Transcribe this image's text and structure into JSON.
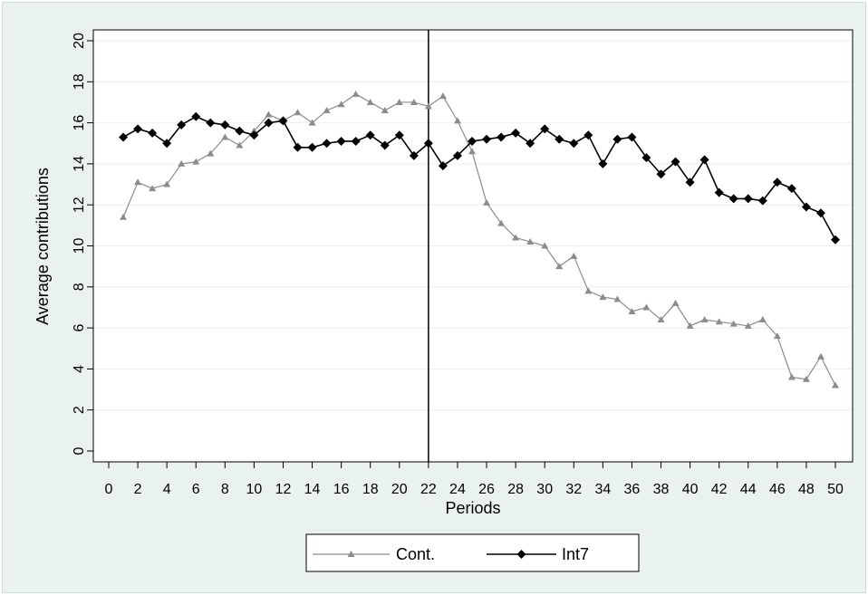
{
  "chart_data": {
    "type": "line",
    "title": "",
    "xlabel": "Periods",
    "ylabel": "Average contributions",
    "xlim": [
      0,
      50
    ],
    "ylim": [
      0,
      20
    ],
    "x_ticks": [
      0,
      2,
      4,
      6,
      8,
      10,
      12,
      14,
      16,
      18,
      20,
      22,
      24,
      26,
      28,
      30,
      32,
      34,
      36,
      38,
      40,
      42,
      44,
      46,
      48,
      50
    ],
    "y_ticks": [
      0,
      2,
      4,
      6,
      8,
      10,
      12,
      14,
      16,
      18,
      20
    ],
    "grid": "horizontal",
    "legend_position": "bottom",
    "vertical_reference_line_x": 22,
    "x": [
      1,
      2,
      3,
      4,
      5,
      6,
      7,
      8,
      9,
      10,
      11,
      12,
      13,
      14,
      15,
      16,
      17,
      18,
      19,
      20,
      21,
      22,
      23,
      24,
      25,
      26,
      27,
      28,
      29,
      30,
      31,
      32,
      33,
      34,
      35,
      36,
      37,
      38,
      39,
      40,
      41,
      42,
      43,
      44,
      45,
      46,
      47,
      48,
      49,
      50
    ],
    "series": [
      {
        "name": "Cont.",
        "marker": "triangle",
        "color": "#8c8c8c",
        "values": [
          11.4,
          13.1,
          12.8,
          13.0,
          14.0,
          14.1,
          14.5,
          15.3,
          14.9,
          15.6,
          16.4,
          16.1,
          16.5,
          16.0,
          16.6,
          16.9,
          17.4,
          17.0,
          16.6,
          17.0,
          17.0,
          16.8,
          17.3,
          16.1,
          14.6,
          12.1,
          11.1,
          10.4,
          10.2,
          10.0,
          9.0,
          9.5,
          7.8,
          7.5,
          7.4,
          6.8,
          7.0,
          6.4,
          7.2,
          6.1,
          6.4,
          6.3,
          6.2,
          6.1,
          6.4,
          5.6,
          3.6,
          3.5,
          4.6,
          3.2
        ]
      },
      {
        "name": "Int7",
        "marker": "diamond",
        "color": "#000000",
        "values": [
          15.3,
          15.7,
          15.5,
          15.0,
          15.9,
          16.3,
          16.0,
          15.9,
          15.6,
          15.4,
          16.0,
          16.1,
          14.8,
          14.8,
          15.0,
          15.1,
          15.1,
          15.4,
          14.9,
          15.4,
          14.4,
          15.0,
          13.9,
          14.4,
          15.1,
          15.2,
          15.3,
          15.5,
          15.0,
          15.7,
          15.2,
          15.0,
          15.4,
          14.0,
          15.2,
          15.3,
          14.3,
          13.5,
          14.1,
          13.1,
          14.2,
          12.6,
          12.3,
          12.3,
          12.2,
          13.1,
          12.8,
          11.9,
          11.6,
          10.3
        ]
      }
    ]
  }
}
